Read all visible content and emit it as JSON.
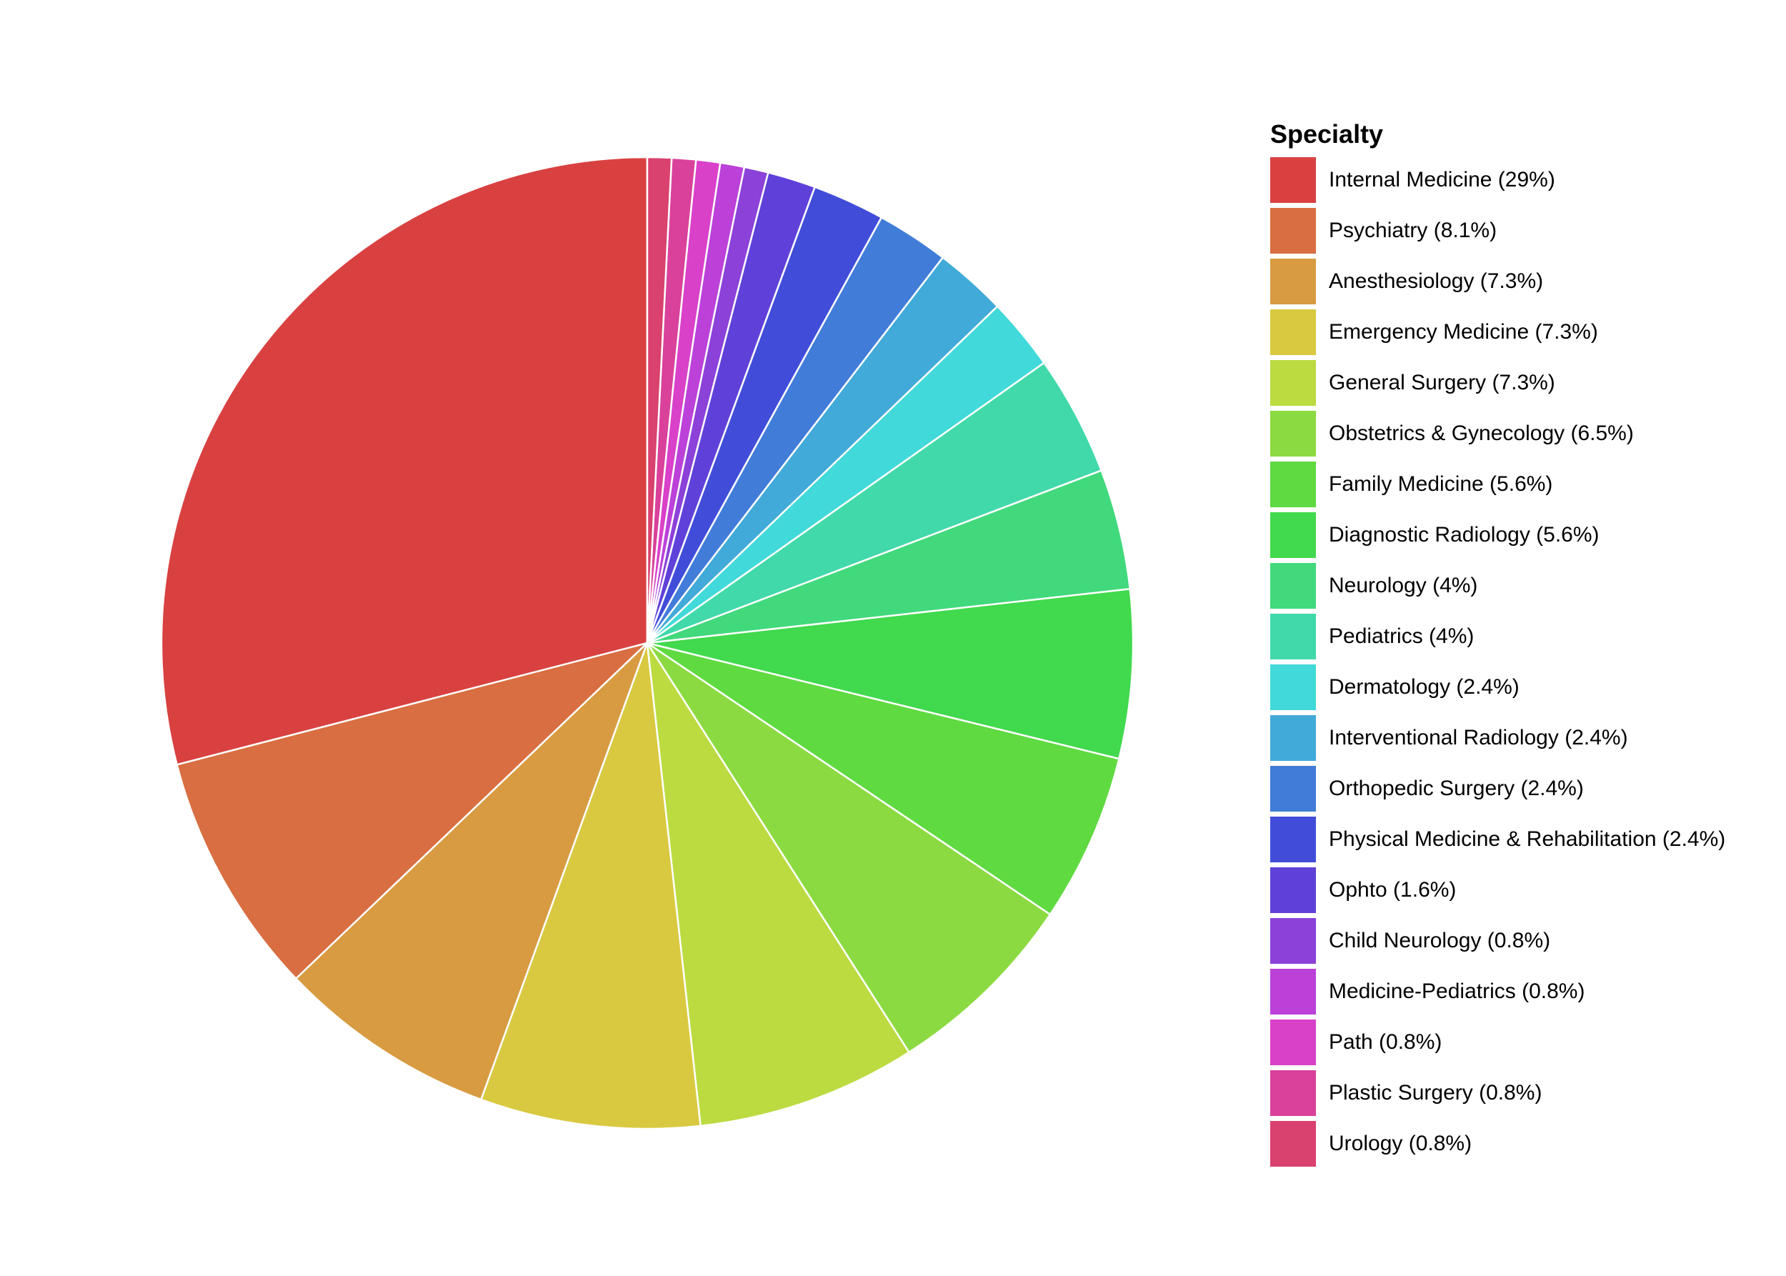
{
  "chart_data": {
    "type": "pie",
    "legend_title": "Specialty",
    "legend_position": "right",
    "start_angle": "12 o'clock",
    "direction": "counter-clockwise",
    "slices": [
      {
        "label": "Internal Medicine (29%)",
        "name": "Internal Medicine",
        "value": 29.0,
        "color": "#D94141"
      },
      {
        "label": "Psychiatry (8.1%)",
        "name": "Psychiatry",
        "value": 8.1,
        "color": "#D86E41"
      },
      {
        "label": "Anesthesiology (7.3%)",
        "name": "Anesthesiology",
        "value": 7.3,
        "color": "#D89B41"
      },
      {
        "label": "Emergency Medicine (7.3%)",
        "name": "Emergency Medicine",
        "value": 7.3,
        "color": "#D9C941"
      },
      {
        "label": "General Surgery (7.3%)",
        "name": "General Surgery",
        "value": 7.3,
        "color": "#BBDB41"
      },
      {
        "label": "Obstetrics & Gynecology (6.5%)",
        "name": "Obstetrics & Gynecology",
        "value": 6.5,
        "color": "#8CDA41"
      },
      {
        "label": "Family Medicine (5.6%)",
        "name": "Family Medicine",
        "value": 5.6,
        "color": "#5FDA41"
      },
      {
        "label": "Diagnostic Radiology (5.6%)",
        "name": "Diagnostic Radiology",
        "value": 5.6,
        "color": "#41D94D"
      },
      {
        "label": "Neurology (4%)",
        "name": "Neurology",
        "value": 4.0,
        "color": "#41D97C"
      },
      {
        "label": "Pediatrics (4%)",
        "name": "Pediatrics",
        "value": 4.0,
        "color": "#41D9AA"
      },
      {
        "label": "Dermatology (2.4%)",
        "name": "Dermatology",
        "value": 2.4,
        "color": "#41D9D9"
      },
      {
        "label": "Interventional Radiology (2.4%)",
        "name": "Interventional Radiology",
        "value": 2.4,
        "color": "#41AAD9"
      },
      {
        "label": "Orthopedic Surgery (2.4%)",
        "name": "Orthopedic Surgery",
        "value": 2.4,
        "color": "#417CD9"
      },
      {
        "label": "Physical Medicine & Rehabilitation (2.4%)",
        "name": "Physical Medicine & Rehabilitation",
        "value": 2.4,
        "color": "#414DD9"
      },
      {
        "label": "Ophto (1.6%)",
        "name": "Ophto",
        "value": 1.6,
        "color": "#5F41D9"
      },
      {
        "label": "Child Neurology (0.8%)",
        "name": "Child Neurology",
        "value": 0.8,
        "color": "#8C41D9"
      },
      {
        "label": "Medicine-Pediatrics (0.8%)",
        "name": "Medicine-Pediatrics",
        "value": 0.8,
        "color": "#BB41D9"
      },
      {
        "label": "Path (0.8%)",
        "name": "Path",
        "value": 0.8,
        "color": "#D941C9"
      },
      {
        "label": "Plastic Surgery (0.8%)",
        "name": "Plastic Surgery",
        "value": 0.8,
        "color": "#D9419B"
      },
      {
        "label": "Urology (0.8%)",
        "name": "Urology",
        "value": 0.8,
        "color": "#D9416E"
      }
    ]
  }
}
